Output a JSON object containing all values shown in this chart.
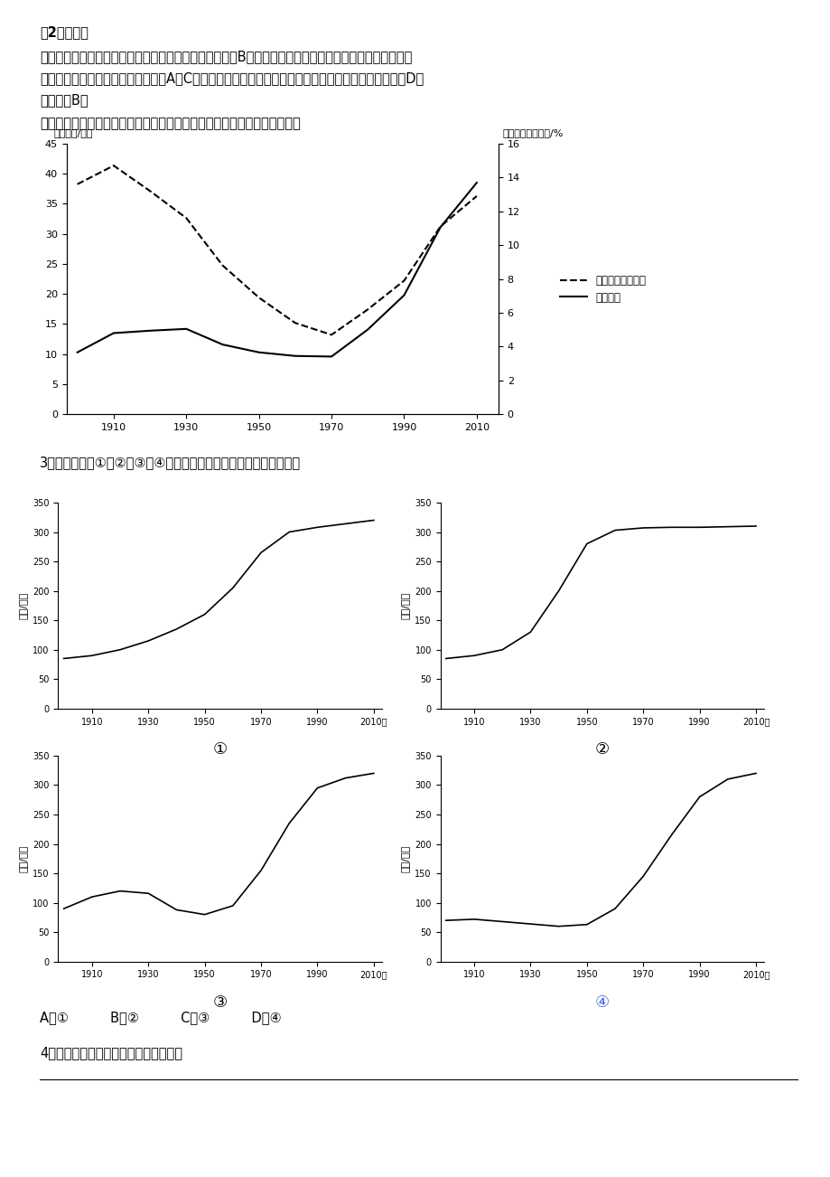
{
  "bg_color": "#ffffff",
  "header_lines": [
    "　2题详解、",
    "日本人口潜在支持比低，老年人口比重大，养老负担重，B正确。图示显示的是青壮年与老年人口的比例，",
    "未能直接表示出各国总人口的变动，A、C错误。潜在支持比不断下降的主要原因是社会生产力的发展，D错",
    "误。故选B。",
    "下图显示某国移民人数及其占总人口比例的变化。读下图，完成下列各题。"
  ],
  "main_chart": {
    "years": [
      1900,
      1910,
      1920,
      1930,
      1940,
      1950,
      1960,
      1970,
      1980,
      1990,
      2000,
      2010
    ],
    "immigrants": [
      10.3,
      13.5,
      13.9,
      14.2,
      11.6,
      10.3,
      9.7,
      9.6,
      14.1,
      19.8,
      31.1,
      38.5
    ],
    "proportion": [
      13.6,
      14.7,
      13.2,
      11.6,
      8.8,
      6.9,
      5.4,
      4.7,
      6.2,
      7.9,
      11.1,
      12.9
    ],
    "ylabel_left": "移民人数/百万",
    "ylabel_right": "移民占总人口比例/%",
    "ylim_left": [
      0,
      45
    ],
    "ylim_right": [
      0,
      16
    ],
    "yticks_left": [
      0,
      5,
      10,
      15,
      20,
      25,
      30,
      35,
      40,
      45
    ],
    "yticks_right": [
      0,
      2,
      4,
      6,
      8,
      10,
      12,
      14,
      16
    ],
    "xticks": [
      1910,
      1930,
      1950,
      1970,
      1990,
      2010
    ],
    "legend_dashed": "移民占总人口比例",
    "legend_solid": "移民人数"
  },
  "q3_text": "3．下图所示的①、②、③、④四幅图中，符合该国人口增长特点的是",
  "subplots": {
    "x_years": [
      1900,
      1910,
      1920,
      1930,
      1940,
      1950,
      1960,
      1970,
      1980,
      1990,
      2000,
      2010
    ],
    "xlim": [
      1898,
      2013
    ],
    "ylim": [
      0,
      350
    ],
    "yticks": [
      0,
      50,
      100,
      150,
      200,
      250,
      300,
      350
    ],
    "xticks": [
      1910,
      1930,
      1950,
      1970,
      1990,
      2010
    ],
    "xlabel_last": "年",
    "ylabel": "人数/百万",
    "chart1_y": [
      85,
      90,
      100,
      115,
      135,
      160,
      205,
      265,
      300,
      308,
      314,
      320
    ],
    "chart2_y": [
      85,
      90,
      100,
      130,
      200,
      280,
      303,
      307,
      308,
      308,
      309,
      310
    ],
    "chart3_y": [
      90,
      110,
      120,
      116,
      88,
      80,
      95,
      155,
      235,
      295,
      312,
      320
    ],
    "chart4_y": [
      70,
      72,
      68,
      64,
      60,
      63,
      90,
      145,
      215,
      280,
      310,
      320
    ],
    "labels": [
      "①",
      "②",
      "③",
      "④"
    ],
    "label_colors": [
      "#000000",
      "#000000",
      "#000000",
      "#4169e1"
    ]
  },
  "answers_text": "A．①          B．②          C．③          D．④",
  "q4_text": "4．该国人口自然增长数量最多的时段为"
}
